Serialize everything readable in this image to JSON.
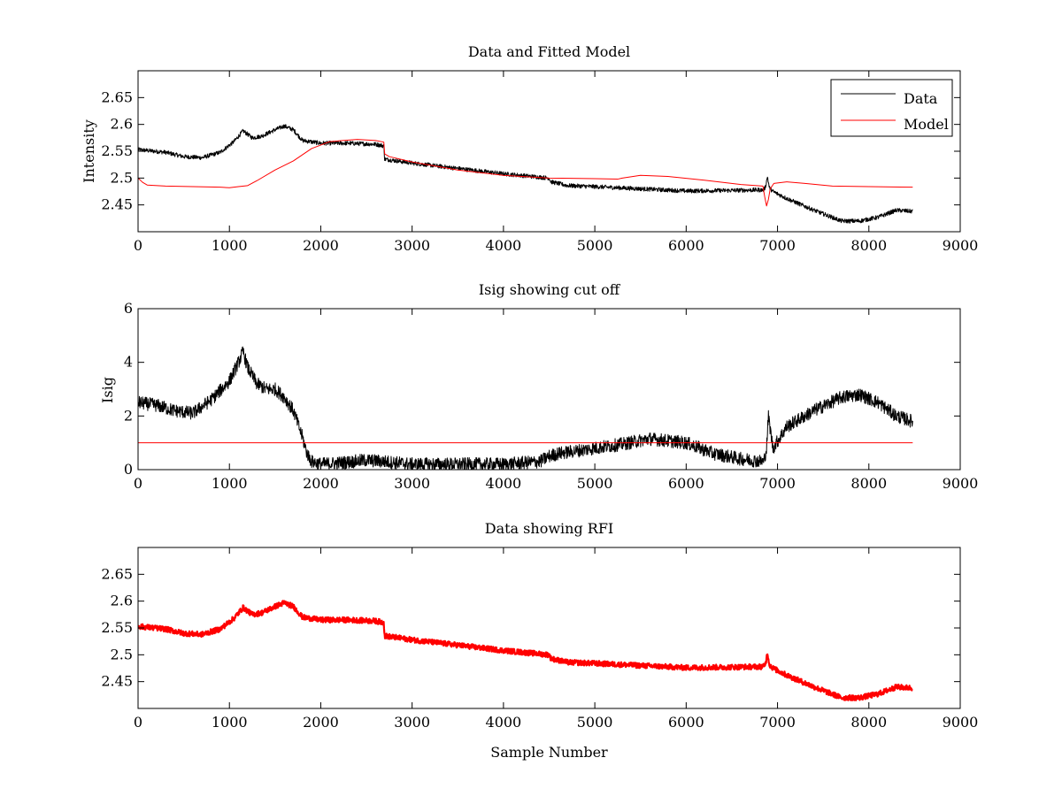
{
  "chart_data": [
    {
      "type": "line",
      "title": "Data and Fitted Model",
      "xlabel": "",
      "ylabel": "Intensity",
      "xlim": [
        0,
        9000
      ],
      "ylim": [
        2.4,
        2.7
      ],
      "xticks": [
        "0",
        "1000",
        "2000",
        "3000",
        "4000",
        "5000",
        "6000",
        "7000",
        "8000",
        "9000"
      ],
      "yticks": [
        "2.45",
        "2.5",
        "2.55",
        "2.6",
        "2.65"
      ],
      "legend": {
        "position": "top-right",
        "entries": [
          "Data",
          "Model"
        ]
      },
      "series": [
        {
          "name": "Data",
          "color": "#000000",
          "noise": 0.004,
          "x": [
            0,
            300,
            500,
            700,
            900,
            1050,
            1150,
            1250,
            1350,
            1500,
            1600,
            1700,
            1800,
            2000,
            2300,
            2600,
            2690,
            2700,
            2710,
            3000,
            3500,
            4000,
            4500,
            4520,
            4700,
            5000,
            5500,
            6000,
            6500,
            6850,
            6870,
            6890,
            6910,
            6950,
            7100,
            7400,
            7700,
            7900,
            8100,
            8300,
            8480
          ],
          "y": [
            2.553,
            2.548,
            2.54,
            2.538,
            2.548,
            2.568,
            2.588,
            2.575,
            2.578,
            2.59,
            2.597,
            2.59,
            2.57,
            2.565,
            2.565,
            2.563,
            2.56,
            2.535,
            2.535,
            2.528,
            2.518,
            2.508,
            2.5,
            2.493,
            2.486,
            2.484,
            2.48,
            2.476,
            2.477,
            2.478,
            2.485,
            2.503,
            2.482,
            2.475,
            2.462,
            2.44,
            2.42,
            2.42,
            2.427,
            2.44,
            2.438
          ]
        },
        {
          "name": "Model",
          "color": "#ff0000",
          "x": [
            0,
            50,
            100,
            300,
            600,
            900,
            1000,
            1100,
            1200,
            1300,
            1500,
            1700,
            1900,
            2100,
            2400,
            2600,
            2690,
            2700,
            2750,
            3000,
            3500,
            4000,
            4500,
            5000,
            5250,
            5300,
            5500,
            5800,
            6200,
            6600,
            6840,
            6860,
            6880,
            6900,
            6920,
            6960,
            7100,
            7300,
            7600,
            8000,
            8480
          ],
          "y": [
            2.5,
            2.492,
            2.487,
            2.485,
            2.484,
            2.483,
            2.482,
            2.484,
            2.486,
            2.495,
            2.515,
            2.532,
            2.555,
            2.568,
            2.572,
            2.57,
            2.567,
            2.545,
            2.54,
            2.53,
            2.515,
            2.505,
            2.5,
            2.499,
            2.498,
            2.5,
            2.505,
            2.503,
            2.496,
            2.488,
            2.485,
            2.465,
            2.448,
            2.46,
            2.48,
            2.49,
            2.493,
            2.49,
            2.485,
            2.484,
            2.483
          ]
        }
      ]
    },
    {
      "type": "line",
      "title": "Isig showing cut off",
      "xlabel": "",
      "ylabel": "Isig",
      "xlim": [
        0,
        9000
      ],
      "ylim": [
        0,
        6
      ],
      "xticks": [
        "0",
        "1000",
        "2000",
        "3000",
        "4000",
        "5000",
        "6000",
        "7000",
        "8000",
        "9000"
      ],
      "yticks": [
        "0",
        "2",
        "4",
        "6"
      ],
      "series": [
        {
          "color": "#000000",
          "noise": 0.25,
          "x": [
            0,
            200,
            400,
            600,
            800,
            1000,
            1100,
            1150,
            1200,
            1300,
            1400,
            1500,
            1600,
            1700,
            1800,
            1850,
            1900,
            2000,
            2200,
            2500,
            2700,
            3000,
            3500,
            4000,
            4400,
            4500,
            4600,
            5000,
            5300,
            5600,
            6000,
            6300,
            6600,
            6850,
            6880,
            6900,
            6950,
            7100,
            7400,
            7700,
            7900,
            8100,
            8300,
            8480
          ],
          "y": [
            2.5,
            2.4,
            2.2,
            2.1,
            2.6,
            3.3,
            4.0,
            4.4,
            3.8,
            3.2,
            3.0,
            3.0,
            2.7,
            2.2,
            1.2,
            0.6,
            0.3,
            0.2,
            0.25,
            0.35,
            0.3,
            0.2,
            0.2,
            0.2,
            0.3,
            0.5,
            0.6,
            0.8,
            0.95,
            1.15,
            1.0,
            0.6,
            0.4,
            0.3,
            0.8,
            2.0,
            0.8,
            1.6,
            2.2,
            2.7,
            2.8,
            2.5,
            2.0,
            1.8
          ]
        },
        {
          "color": "#ff0000",
          "noise": 0,
          "x": [
            0,
            8480
          ],
          "y": [
            1,
            1
          ]
        }
      ]
    },
    {
      "type": "scatter",
      "title": "Data showing RFI",
      "xlabel": "Sample Number",
      "ylabel": "",
      "xlim": [
        0,
        9000
      ],
      "ylim": [
        2.4,
        2.7
      ],
      "xticks": [
        "0",
        "1000",
        "2000",
        "3000",
        "4000",
        "5000",
        "6000",
        "7000",
        "8000",
        "9000"
      ],
      "yticks": [
        "2.45",
        "2.5",
        "2.55",
        "2.6",
        "2.65"
      ],
      "series": [
        {
          "color": "#ff0000",
          "noise": 0.005,
          "x": [
            0,
            300,
            500,
            700,
            900,
            1050,
            1150,
            1250,
            1350,
            1500,
            1600,
            1700,
            1800,
            2000,
            2300,
            2600,
            2690,
            2700,
            2710,
            3000,
            3500,
            4000,
            4500,
            4520,
            4700,
            5000,
            5500,
            6000,
            6500,
            6850,
            6870,
            6890,
            6910,
            6950,
            7100,
            7400,
            7700,
            7900,
            8100,
            8300,
            8480
          ],
          "y": [
            2.553,
            2.548,
            2.54,
            2.538,
            2.548,
            2.568,
            2.588,
            2.575,
            2.578,
            2.59,
            2.597,
            2.59,
            2.57,
            2.565,
            2.565,
            2.563,
            2.56,
            2.535,
            2.535,
            2.528,
            2.518,
            2.508,
            2.5,
            2.493,
            2.486,
            2.484,
            2.48,
            2.476,
            2.477,
            2.478,
            2.485,
            2.503,
            2.482,
            2.475,
            2.462,
            2.44,
            2.42,
            2.42,
            2.427,
            2.44,
            2.438
          ]
        }
      ]
    }
  ]
}
